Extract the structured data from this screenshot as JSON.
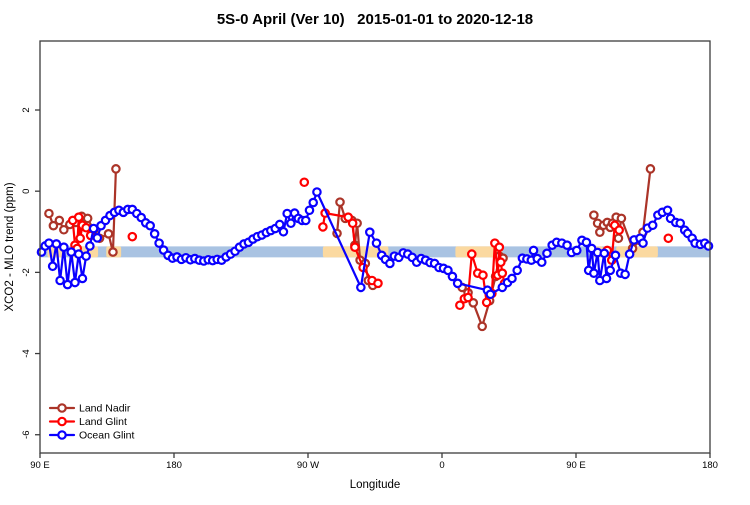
{
  "title": "5S-0 April (Ver 10)   2015-01-01 to 2020-12-18",
  "legend": {
    "entries": [
      {
        "label": "Land Nadir",
        "color": "#ab3428"
      },
      {
        "label": "Land Glint",
        "color": "#ff0000"
      },
      {
        "label": "Ocean Glint",
        "color": "#0a00ff"
      }
    ]
  },
  "chart_data": {
    "type": "line",
    "title": "5S-0 April (Ver 10)   2015-01-01 to 2020-12-18",
    "xlabel": "Longitude",
    "ylabel": "XCO2 - MLO trend (ppm)",
    "x_range_deg": [
      90,
      540
    ],
    "y_range": [
      -6.45,
      3.7
    ],
    "grid": false,
    "legend_position": "bottom-left",
    "x_ticks": [
      {
        "deg": 90,
        "label": "90 E"
      },
      {
        "deg": 180,
        "label": "180"
      },
      {
        "deg": 270,
        "label": "90 W"
      },
      {
        "deg": 360,
        "label": "0"
      },
      {
        "deg": 450,
        "label": "90 E"
      },
      {
        "deg": 540,
        "label": "180"
      }
    ],
    "y_ticks": [
      {
        "value": 2,
        "label": "2"
      },
      {
        "value": 0,
        "label": "0"
      },
      {
        "value": -2,
        "label": "-2"
      },
      {
        "value": -4,
        "label": "-4"
      },
      {
        "value": -6,
        "label": "-6"
      }
    ],
    "surface_band": {
      "y_top": -1.36,
      "y_bottom": -1.63,
      "ocean_color": "#a9c3e2",
      "land_color": "#fbd9a0",
      "land_segments_deg": [
        [
          95,
          107
        ],
        [
          111.5,
          129
        ],
        [
          134.5,
          144.5
        ],
        [
          280,
          324
        ],
        [
          369,
          400.5
        ],
        [
          462,
          468
        ],
        [
          477,
          505
        ]
      ]
    },
    "series": [
      {
        "name": "Land Nadir",
        "color": "#ab3428",
        "segments": [
          [
            [
              96,
              -0.55
            ],
            [
              99,
              -0.85
            ],
            [
              103,
              -0.72
            ],
            [
              106,
              -0.95
            ],
            [
              110,
              -0.82
            ],
            [
              114,
              -0.77
            ],
            [
              118,
              -0.62
            ],
            [
              122,
              -0.67
            ],
            [
              126,
              -0.96
            ],
            [
              130,
              -1.16
            ],
            [
              136,
              -1.05
            ],
            [
              139,
              -1.5
            ],
            [
              141,
              0.55
            ]
          ],
          [
            [
              289.5,
              -1.04
            ],
            [
              291.5,
              -0.27
            ],
            [
              295,
              -0.67
            ],
            [
              299.5,
              -0.72
            ],
            [
              301.5,
              -1.33
            ],
            [
              303,
              -0.79
            ],
            [
              305,
              -1.7
            ],
            [
              308.5,
              -1.78
            ],
            [
              310.5,
              -2.2
            ],
            [
              313.5,
              -2.32
            ]
          ],
          [
            [
              373.5,
              -2.37
            ],
            [
              377.5,
              -2.5
            ],
            [
              381,
              -2.75
            ],
            [
              387,
              -3.33
            ],
            [
              392,
              -2.7
            ],
            [
              396,
              -2.1
            ],
            [
              398.5,
              -1.6
            ],
            [
              401,
              -1.65
            ]
          ],
          [
            [
              462,
              -0.59
            ],
            [
              464.5,
              -0.79
            ],
            [
              466,
              -1.01
            ],
            [
              468.5,
              -0.84
            ],
            [
              471,
              -0.77
            ],
            [
              473,
              -0.89
            ],
            [
              474.5,
              -0.79
            ],
            [
              477,
              -0.64
            ],
            [
              478.5,
              -1.16
            ],
            [
              480.5,
              -0.67
            ],
            [
              488,
              -1.41
            ],
            [
              493,
              -1.21
            ],
            [
              495,
              -1.01
            ],
            [
              500,
              0.55
            ]
          ]
        ]
      },
      {
        "name": "Land Glint",
        "color": "#ff0000",
        "segments": [
          [
            [
              112,
              -0.72
            ],
            [
              113.5,
              -1.33
            ],
            [
              115,
              -1.41
            ],
            [
              116,
              -0.64
            ],
            [
              117,
              -1.16
            ],
            [
              118.5,
              -0.84
            ],
            [
              121,
              -0.9
            ],
            [
              124,
              -1.09
            ]
          ],
          [
            [
              152,
              -1.12
            ]
          ],
          [
            [
              267.5,
              0.22
            ]
          ],
          [
            [
              280,
              -0.88
            ],
            [
              281.5,
              -0.54
            ],
            [
              297,
              -0.64
            ],
            [
              300,
              -0.79
            ],
            [
              301.5,
              -1.38
            ],
            [
              307,
              -1.88
            ],
            [
              313,
              -2.2
            ],
            [
              317,
              -2.27
            ]
          ],
          [
            [
              372,
              -2.81
            ],
            [
              375,
              -2.65
            ],
            [
              377.5,
              -2.62
            ],
            [
              380,
              -1.55
            ],
            [
              384,
              -2.02
            ],
            [
              387.5,
              -2.07
            ],
            [
              390,
              -2.74
            ],
            [
              393.5,
              -2.52
            ],
            [
              395.5,
              -1.28
            ],
            [
              397.5,
              -2.07
            ],
            [
              398.5,
              -1.38
            ],
            [
              399.5,
              -1.75
            ],
            [
              400.5,
              -2.02
            ],
            [
              402,
              -2.27
            ]
          ],
          [
            [
              471,
              -1.46
            ],
            [
              474,
              -1.7
            ],
            [
              476,
              -0.84
            ],
            [
              479,
              -0.96
            ]
          ],
          [
            [
              512,
              -1.16
            ]
          ]
        ]
      },
      {
        "name": "Ocean Glint",
        "color": "#0a00ff",
        "segments": [
          [
            [
              91,
              -1.5
            ],
            [
              93.5,
              -1.35
            ],
            [
              96,
              -1.28
            ],
            [
              98.5,
              -1.85
            ],
            [
              101,
              -1.3
            ],
            [
              103.5,
              -2.2
            ],
            [
              106,
              -1.38
            ],
            [
              108.5,
              -2.3
            ],
            [
              111,
              -1.5
            ],
            [
              113.5,
              -2.25
            ],
            [
              116,
              -1.55
            ],
            [
              118.5,
              -2.15
            ],
            [
              121,
              -1.6
            ],
            [
              123.5,
              -1.35
            ],
            [
              126,
              -0.92
            ],
            [
              128.5,
              -1.15
            ],
            [
              131,
              -0.85
            ],
            [
              134,
              -0.72
            ],
            [
              137,
              -0.6
            ],
            [
              140,
              -0.52
            ],
            [
              143,
              -0.47
            ],
            [
              146,
              -0.52
            ],
            [
              149,
              -0.45
            ],
            [
              152,
              -0.45
            ],
            [
              155,
              -0.55
            ],
            [
              158,
              -0.65
            ],
            [
              161,
              -0.78
            ],
            [
              164,
              -0.85
            ],
            [
              167,
              -1.05
            ],
            [
              170,
              -1.28
            ],
            [
              173,
              -1.45
            ],
            [
              176,
              -1.58
            ],
            [
              179,
              -1.65
            ],
            [
              182,
              -1.62
            ],
            [
              185,
              -1.68
            ],
            [
              188,
              -1.64
            ],
            [
              191,
              -1.69
            ],
            [
              194,
              -1.66
            ],
            [
              197,
              -1.7
            ],
            [
              200,
              -1.72
            ],
            [
              203,
              -1.69
            ],
            [
              206,
              -1.71
            ],
            [
              209,
              -1.68
            ],
            [
              212,
              -1.7
            ],
            [
              215,
              -1.62
            ],
            [
              218,
              -1.55
            ],
            [
              221,
              -1.48
            ],
            [
              224,
              -1.38
            ],
            [
              227,
              -1.3
            ],
            [
              230,
              -1.26
            ],
            [
              233,
              -1.18
            ],
            [
              236,
              -1.12
            ],
            [
              239,
              -1.08
            ],
            [
              242,
              -1.02
            ],
            [
              245,
              -0.97
            ],
            [
              248,
              -0.92
            ],
            [
              251,
              -0.82
            ],
            [
              253.5,
              -1.0
            ],
            [
              256,
              -0.55
            ],
            [
              258.5,
              -0.79
            ],
            [
              261,
              -0.54
            ],
            [
              263.5,
              -0.67
            ],
            [
              266,
              -0.72
            ],
            [
              268.5,
              -0.72
            ],
            [
              271,
              -0.47
            ],
            [
              273.5,
              -0.28
            ],
            [
              276,
              -0.02
            ],
            [
              305.5,
              -2.37
            ],
            [
              311.5,
              -1.01
            ],
            [
              316,
              -1.28
            ],
            [
              319.5,
              -1.58
            ],
            [
              322,
              -1.68
            ],
            [
              325,
              -1.78
            ],
            [
              328,
              -1.6
            ],
            [
              331,
              -1.63
            ],
            [
              334,
              -1.52
            ],
            [
              337,
              -1.55
            ],
            [
              340,
              -1.63
            ],
            [
              343,
              -1.75
            ],
            [
              346,
              -1.66
            ],
            [
              349,
              -1.7
            ],
            [
              352,
              -1.76
            ],
            [
              355,
              -1.78
            ],
            [
              358,
              -1.88
            ],
            [
              361,
              -1.9
            ],
            [
              364,
              -1.95
            ],
            [
              367,
              -2.1
            ],
            [
              370.5,
              -2.27
            ],
            [
              390.5,
              -2.44
            ],
            [
              392.5,
              -2.54
            ],
            [
              400.5,
              -2.37
            ],
            [
              404,
              -2.25
            ],
            [
              407,
              -2.15
            ],
            [
              410.5,
              -1.95
            ],
            [
              414,
              -1.65
            ],
            [
              417,
              -1.67
            ],
            [
              420,
              -1.7
            ],
            [
              421.5,
              -1.46
            ],
            [
              424,
              -1.66
            ],
            [
              427,
              -1.75
            ],
            [
              430.5,
              -1.53
            ],
            [
              434,
              -1.33
            ],
            [
              437,
              -1.26
            ],
            [
              440.5,
              -1.28
            ],
            [
              444,
              -1.33
            ],
            [
              447,
              -1.51
            ],
            [
              450.5,
              -1.46
            ],
            [
              454,
              -1.21
            ],
            [
              457,
              -1.26
            ],
            [
              458.5,
              -1.95
            ],
            [
              460.5,
              -1.41
            ],
            [
              462,
              -2.02
            ],
            [
              464.5,
              -1.51
            ],
            [
              466,
              -2.2
            ],
            [
              469,
              -1.53
            ],
            [
              470.5,
              -2.15
            ],
            [
              473,
              -1.95
            ],
            [
              476.5,
              -1.58
            ],
            [
              480,
              -2.02
            ],
            [
              483,
              -2.05
            ],
            [
              486,
              -1.55
            ],
            [
              489,
              -1.2
            ],
            [
              493,
              -1.16
            ],
            [
              495,
              -1.28
            ],
            [
              498,
              -0.91
            ],
            [
              501.5,
              -0.84
            ],
            [
              505,
              -0.59
            ],
            [
              508,
              -0.52
            ],
            [
              511.5,
              -0.47
            ],
            [
              513.5,
              -0.67
            ],
            [
              517,
              -0.77
            ],
            [
              520,
              -0.79
            ],
            [
              523,
              -0.96
            ],
            [
              525,
              -1.04
            ],
            [
              528,
              -1.16
            ],
            [
              530,
              -1.28
            ],
            [
              533.5,
              -1.31
            ],
            [
              536.5,
              -1.28
            ],
            [
              539,
              -1.35
            ]
          ]
        ]
      }
    ]
  }
}
